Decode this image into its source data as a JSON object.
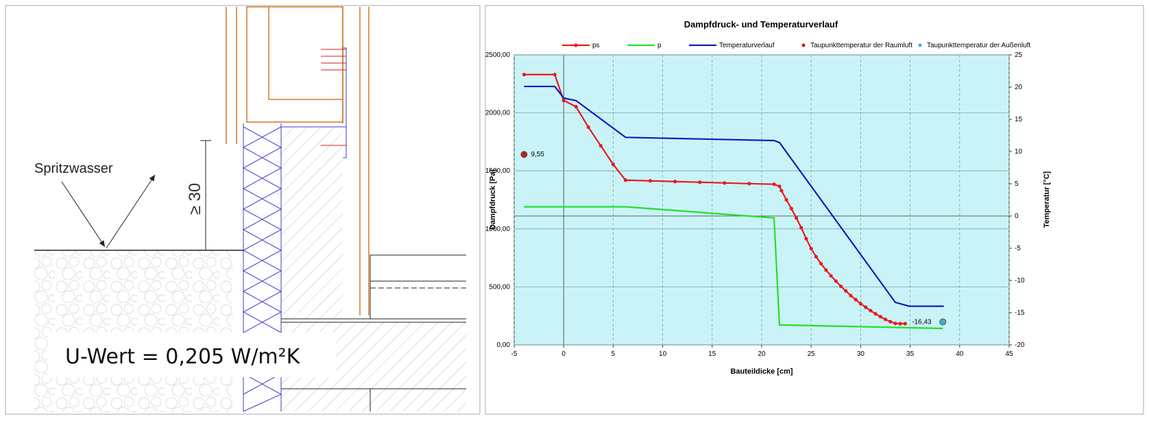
{
  "drawing": {
    "label": "Spritzwasser",
    "dimension": "≥ 30",
    "u_value": "U-Wert = 0,205 W/m²K"
  },
  "chart_data": {
    "type": "line",
    "title": "Dampfdruck- und Temperaturverlauf",
    "x_label": "Bauteildicke [cm]",
    "y_label": "Dampfdruck [Pa]",
    "y2_label": "Temperatur [°C]",
    "xlim": [
      -5,
      45
    ],
    "xticks": [
      -5,
      0,
      5,
      10,
      15,
      20,
      25,
      30,
      35,
      40,
      45
    ],
    "ylim": [
      0,
      2500
    ],
    "yticks": [
      {
        "value": 0,
        "label": "0,00"
      },
      {
        "value": 500,
        "label": "500,00"
      },
      {
        "value": 1000,
        "label": "1000,00"
      },
      {
        "value": 1500,
        "label": "1500,00"
      },
      {
        "value": 2000,
        "label": "2000,00"
      },
      {
        "value": 2500,
        "label": "2500,00"
      }
    ],
    "y2lim": [
      -20,
      25
    ],
    "y2ticks": [
      -20,
      -15,
      -10,
      -5,
      0,
      5,
      10,
      15,
      20,
      25
    ],
    "grid": true,
    "legend": "top",
    "background": "#c9f3f7",
    "series": [
      {
        "name": "ps",
        "color": "#e8191e",
        "markers": true,
        "x": [
          -4,
          -0.9,
          0,
          1.25,
          2.5,
          3.75,
          5,
          6.25,
          8.75,
          11.25,
          13.75,
          16.25,
          18.75,
          21.25,
          21.8,
          22,
          22.5,
          23,
          23.5,
          24,
          24.5,
          25,
          25.5,
          26,
          26.5,
          27,
          27.5,
          28,
          28.5,
          29,
          29.5,
          30,
          30.5,
          31,
          31.5,
          32,
          32.5,
          33,
          33.5,
          34,
          34.5
        ],
        "values": [
          2330,
          2330,
          2107,
          2053,
          1876,
          1716,
          1556,
          1420,
          1414,
          1408,
          1402,
          1396,
          1390,
          1385,
          1367,
          1330,
          1250,
          1175,
          1095,
          1010,
          915,
          830,
          760,
          700,
          645,
          595,
          550,
          505,
          465,
          425,
          390,
          355,
          325,
          295,
          268,
          243,
          220,
          200,
          185,
          183,
          183
        ]
      },
      {
        "name": "p",
        "color": "#22e02a",
        "x": [
          -4,
          6.25,
          21.25,
          21.8,
          38.3
        ],
        "values": [
          1190,
          1190,
          1095,
          172,
          142
        ]
      },
      {
        "name": "Temperaturverlauf",
        "color": "#1a1ab8",
        "axis": "y2",
        "x": [
          -4,
          -0.9,
          0,
          1.25,
          6.25,
          21.25,
          21.8,
          33.5,
          34.9,
          38.4
        ],
        "values": [
          20.1,
          20.1,
          18.3,
          17.9,
          12.2,
          11.7,
          11.4,
          -13.4,
          -14,
          -14
        ]
      },
      {
        "name": "Taupunkttemperatur der Raumluft",
        "color": "#c81818",
        "axis": "y2",
        "markers_only": true,
        "x": [
          -4
        ],
        "values": [
          9.55
        ],
        "value_labels": [
          "9,55"
        ]
      },
      {
        "name": "Taupunkttemperatur der Außenluft",
        "color": "#3ab6c4",
        "axis": "y2",
        "markers_only": true,
        "x": [
          38.3
        ],
        "values": [
          -16.43
        ],
        "value_labels": [
          "-16,43"
        ]
      }
    ]
  }
}
